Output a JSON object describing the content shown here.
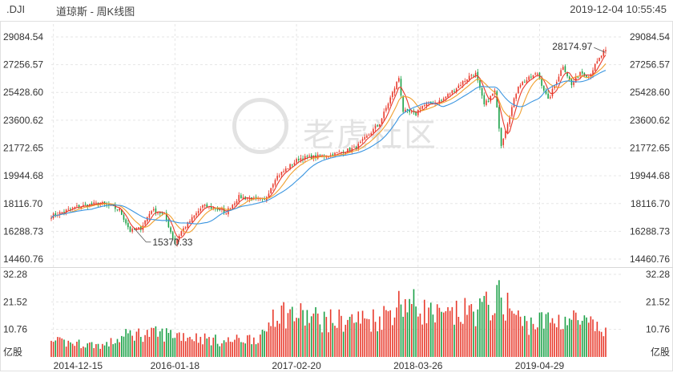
{
  "header": {
    "symbol": ".DJI",
    "name": "道琼斯 - 周K线图",
    "timestamp": "2019-12-04 10:55:45"
  },
  "watermark": {
    "text": "老虎社区"
  },
  "colors": {
    "up": "#e8392b",
    "down": "#1aa046",
    "ma5": "#e8392b",
    "ma10": "#f0a030",
    "ma20": "#3a95e0",
    "grid": "#e6e6e6",
    "axis_text": "#333333"
  },
  "chart_data": {
    "type": "candlestick",
    "price_axis": {
      "ticks": [
        "29084.54",
        "27256.57",
        "25428.60",
        "23600.62",
        "21772.65",
        "19944.68",
        "18116.70",
        "16288.73",
        "14460.76"
      ],
      "ylim": [
        14460.76,
        29084.54
      ]
    },
    "volume_axis": {
      "unit": "亿股",
      "ticks": [
        "32.28",
        "21.52",
        "10.76"
      ],
      "ylim": [
        0,
        32.28
      ]
    },
    "x_ticks": [
      "2014-12-15",
      "2016-01-18",
      "2017-02-20",
      "2018-03-26",
      "2019-04-29"
    ],
    "annotations": [
      {
        "label": "15370.33",
        "kind": "low",
        "date": "2016-01-18"
      },
      {
        "label": "28174.97",
        "kind": "high",
        "date": "2019-11-25"
      }
    ],
    "close_path": {
      "dates": [
        "2014-12-08",
        "2015-03-02",
        "2015-05-18",
        "2015-07-20",
        "2015-08-24",
        "2015-09-28",
        "2015-11-02",
        "2015-12-14",
        "2016-01-18",
        "2016-02-08",
        "2016-04-18",
        "2016-06-20",
        "2016-06-27",
        "2016-08-15",
        "2016-11-07",
        "2016-12-12",
        "2017-03-01",
        "2017-06-12",
        "2017-09-04",
        "2017-11-20",
        "2018-01-22",
        "2018-02-05",
        "2018-03-19",
        "2018-04-02",
        "2018-06-11",
        "2018-09-17",
        "2018-10-01",
        "2018-10-29",
        "2018-12-03",
        "2018-12-24",
        "2019-02-18",
        "2019-04-22",
        "2019-05-27",
        "2019-07-15",
        "2019-08-12",
        "2019-09-09",
        "2019-10-07",
        "2019-11-25"
      ],
      "values": [
        17300,
        17900,
        18150,
        17700,
        16300,
        16500,
        17700,
        17400,
        15500,
        16300,
        17950,
        17700,
        17400,
        18550,
        18300,
        19800,
        21100,
        21300,
        21800,
        23400,
        26400,
        24200,
        24000,
        24500,
        24900,
        26600,
        26650,
        24600,
        25500,
        22000,
        25900,
        26700,
        24900,
        27200,
        25900,
        26800,
        26500,
        28100
      ]
    },
    "volume_path": {
      "dates": [
        "2014-12-08",
        "2015-06-01",
        "2015-08-24",
        "2016-01-18",
        "2016-06-27",
        "2016-11-07",
        "2016-12-05",
        "2017-06-12",
        "2017-11-20",
        "2018-02-05",
        "2018-06-11",
        "2018-10-29",
        "2018-12-24",
        "2019-03-04",
        "2019-08-12",
        "2019-11-25"
      ],
      "values": [
        6,
        4.5,
        9,
        9,
        6,
        8,
        18,
        14,
        15,
        22,
        15,
        19,
        23,
        13,
        15,
        10
      ]
    },
    "start_date": "2014-12-08",
    "end_date": "2019-12-02"
  }
}
